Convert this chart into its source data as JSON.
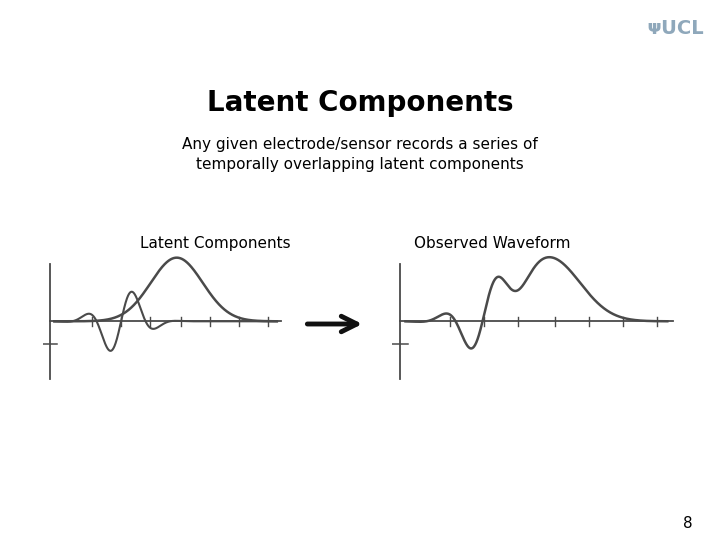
{
  "title": "Latent Components",
  "subtitle": "Any given electrode/sensor records a series of\ntemporally overlapping latent components",
  "label_left": "Latent Components",
  "label_right": "Observed Waveform",
  "page_number": "8",
  "header_dark_color": "#1e3a52",
  "header_light_color": "#8fa8bb",
  "slide_bg": "#ffffff",
  "ucl_text_color": "#8fa8bb",
  "title_fontsize": 20,
  "subtitle_fontsize": 11,
  "label_fontsize": 11,
  "wave_color": "#4a4a4a",
  "axis_color": "#4a4a4a",
  "arrow_color": "#111111"
}
